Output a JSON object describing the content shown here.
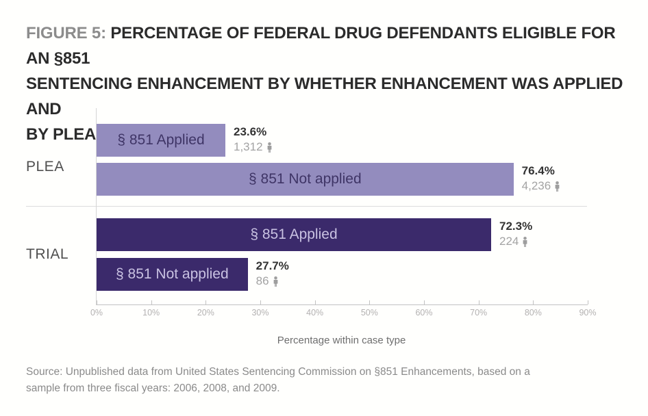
{
  "header": {
    "figure_label": "FIGURE 5:",
    "title_lines": [
      "PERCENTAGE OF FEDERAL DRUG DEFENDANTS ELIGIBLE FOR AN §851",
      "SENTENCING ENHANCEMENT BY WHETHER ENHANCEMENT WAS APPLIED AND",
      "BY PLEA/TRIAL"
    ]
  },
  "chart_data": {
    "type": "bar",
    "orientation": "horizontal",
    "title": "Percentage of federal drug defendants eligible for an §851 sentencing enhancement by whether enhancement was applied and by plea/trial",
    "xlabel": "Percentage within case type",
    "xlim": [
      0,
      90
    ],
    "x_ticks": [
      "0%",
      "10%",
      "20%",
      "30%",
      "40%",
      "50%",
      "60%",
      "70%",
      "80%",
      "90%"
    ],
    "grid": false,
    "groups": [
      {
        "label": "PLEA",
        "color": "#938cbe",
        "bar_text_color": "#3f3566",
        "bars": [
          {
            "label": "§ 851 Applied",
            "value": 23.6,
            "pct_label": "23.6%",
            "count": "1,312"
          },
          {
            "label": "§ 851 Not applied",
            "value": 76.4,
            "pct_label": "76.4%",
            "count": "4,236"
          }
        ]
      },
      {
        "label": "TRIAL",
        "color": "#3b2a6b",
        "bar_text_color": "#c9c2e2",
        "bars": [
          {
            "label": "§ 851 Applied",
            "value": 72.3,
            "pct_label": "72.3%",
            "count": "224"
          },
          {
            "label": "§ 851 Not applied",
            "value": 27.7,
            "pct_label": "27.7%",
            "count": "86"
          }
        ]
      }
    ],
    "annotation_colors": {
      "percent_text": "#333333",
      "count_text": "#a3a3a3",
      "figure_label_text": "#8c8c8c",
      "title_text": "#2b2b2b"
    }
  },
  "footer": {
    "source_lines": [
      "Source: Unpublished data from United States Sentencing Commission on §851 Enhancements, based on a",
      "sample from three fiscal years: 2006, 2008, and 2009."
    ]
  }
}
